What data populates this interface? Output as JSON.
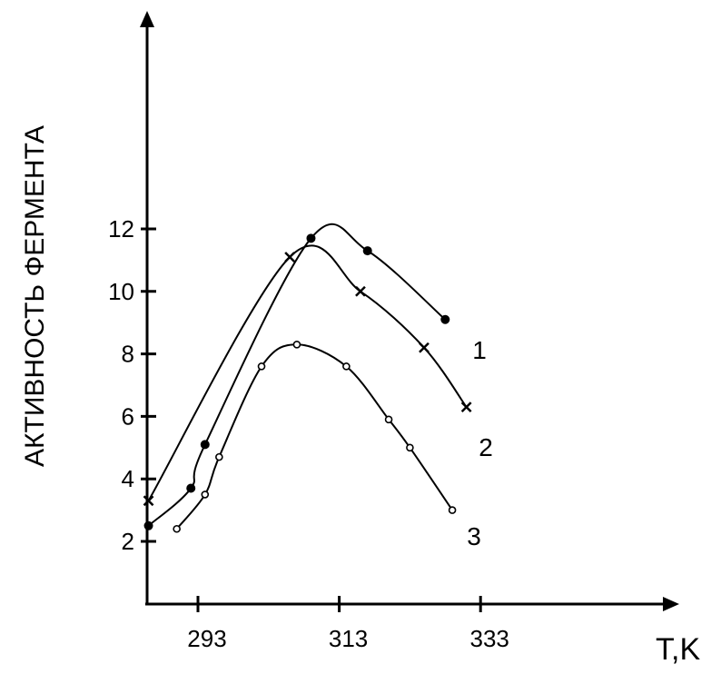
{
  "chart_data": {
    "type": "line",
    "title": "",
    "xlabel": "T,K",
    "ylabel": "АКТИВНОСТЬ ФЕРМЕНТА",
    "x_ticks": [
      "293",
      "313",
      "333"
    ],
    "y_ticks": [
      "2",
      "4",
      "6",
      "8",
      "10",
      "12"
    ],
    "grid": false,
    "series": [
      {
        "name": "1",
        "marker": "filled-circle",
        "x": [
          286,
          292,
          294,
          309,
          317,
          328
        ],
        "y": [
          2.5,
          3.7,
          5.1,
          11.7,
          11.3,
          9.1
        ]
      },
      {
        "name": "2",
        "marker": "x",
        "x": [
          286,
          306,
          316,
          325,
          331
        ],
        "y": [
          3.3,
          11.1,
          10.0,
          8.2,
          6.3
        ]
      },
      {
        "name": "3",
        "marker": "open-circle",
        "x": [
          290,
          294,
          296,
          302,
          307,
          314,
          320,
          323,
          329
        ],
        "y": [
          2.4,
          3.5,
          4.7,
          7.6,
          8.3,
          7.6,
          5.9,
          5.0,
          3.0
        ]
      }
    ]
  }
}
